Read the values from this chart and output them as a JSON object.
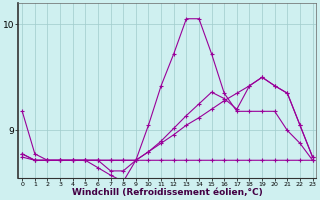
{
  "background_color": "#cff0f0",
  "grid_color": "#a0cccc",
  "line_color": "#990099",
  "xlabel": "Windchill (Refroidissement éolien,°C)",
  "xlabel_fontsize": 6.5,
  "xticks": [
    0,
    1,
    2,
    3,
    4,
    5,
    6,
    7,
    8,
    9,
    10,
    11,
    12,
    13,
    14,
    15,
    16,
    17,
    18,
    19,
    20,
    21,
    22,
    23
  ],
  "yticks": [
    9,
    10
  ],
  "ylim": [
    8.55,
    10.2
  ],
  "xlim": [
    -0.3,
    23.3
  ],
  "s1_y": [
    9.18,
    8.78,
    8.72,
    8.72,
    8.72,
    8.72,
    8.72,
    8.62,
    8.62,
    8.72,
    9.05,
    9.42,
    9.72,
    10.05,
    10.05,
    9.72,
    9.35,
    9.18,
    9.18,
    9.18,
    9.18,
    9.0,
    8.88,
    8.72
  ],
  "s2_y": [
    8.75,
    8.72,
    8.72,
    8.72,
    8.72,
    8.72,
    8.72,
    8.72,
    8.72,
    8.72,
    8.72,
    8.72,
    8.72,
    8.72,
    8.72,
    8.72,
    8.72,
    8.72,
    8.72,
    8.72,
    8.72,
    8.72,
    8.72,
    8.72
  ],
  "s3_y": [
    8.78,
    8.72,
    8.72,
    8.72,
    8.72,
    8.72,
    8.72,
    8.72,
    8.72,
    8.72,
    8.8,
    8.88,
    8.96,
    9.05,
    9.12,
    9.2,
    9.28,
    9.35,
    9.42,
    9.5,
    9.42,
    9.35,
    9.05,
    8.75
  ],
  "s4_y": [
    8.78,
    8.72,
    8.72,
    8.72,
    8.72,
    8.72,
    8.65,
    8.58,
    8.52,
    8.72,
    8.8,
    8.9,
    9.02,
    9.14,
    9.25,
    9.36,
    9.3,
    9.2,
    9.42,
    9.5,
    9.42,
    9.35,
    9.05,
    8.75
  ]
}
